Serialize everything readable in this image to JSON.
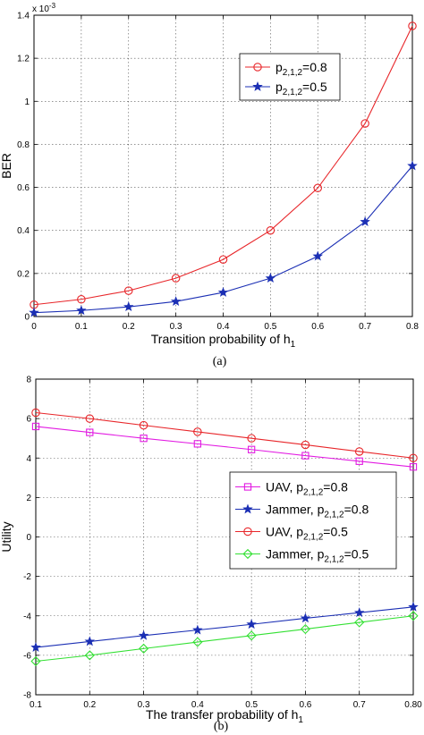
{
  "chart_data": [
    {
      "type": "line",
      "panel_label": "(a)",
      "title": "",
      "xlabel": "Transition probability of h",
      "xlabel_sub": "1",
      "ylabel": "BER",
      "y_multiplier_base": "x 10",
      "y_multiplier_exp": "-3",
      "xlim": [
        0,
        0.8
      ],
      "ylim": [
        0,
        1.4
      ],
      "xticks": [
        0,
        0.1,
        0.2,
        0.3,
        0.4,
        0.5,
        0.6,
        0.7,
        0.8
      ],
      "xtick_labels": [
        "0",
        "0.1",
        "0.2",
        "0.3",
        "0.4",
        "0.5",
        "0.6",
        "0.7",
        "0.8"
      ],
      "yticks": [
        0,
        0.2,
        0.4,
        0.6,
        0.8,
        1,
        1.2,
        1.4
      ],
      "ytick_labels": [
        "0",
        "0.2",
        "0.4",
        "0.6",
        "0.8",
        "1",
        "1.2",
        "1.4"
      ],
      "grid": true,
      "legend_position": "upper-right",
      "x": [
        0,
        0.1,
        0.2,
        0.3,
        0.4,
        0.5,
        0.6,
        0.7,
        0.8
      ],
      "series": [
        {
          "name_prefix": "p",
          "name_sub": "2,1,2",
          "name_suffix": "=0.8",
          "color": "#e8262a",
          "marker": "circle",
          "values": [
            0.055,
            0.08,
            0.12,
            0.178,
            0.265,
            0.4,
            0.597,
            0.897,
            1.35
          ]
        },
        {
          "name_prefix": "p",
          "name_sub": "2,1,2",
          "name_suffix": "=0.5",
          "color": "#1b2fb4",
          "marker": "star",
          "values": [
            0.018,
            0.028,
            0.045,
            0.07,
            0.112,
            0.178,
            0.28,
            0.44,
            0.7
          ]
        }
      ]
    },
    {
      "type": "line",
      "panel_label": "(b)",
      "title": "",
      "xlabel": "The transfer probability of h",
      "xlabel_sub": "1",
      "ylabel": "Utility",
      "xlim": [
        0.1,
        0.8
      ],
      "ylim": [
        -8,
        8
      ],
      "xticks": [
        0.1,
        0.2,
        0.3,
        0.4,
        0.5,
        0.6,
        0.7,
        0.8
      ],
      "xtick_labels": [
        "0.1",
        "0.2",
        "0.3",
        "0.4",
        "0.5",
        "0.6",
        "0.7",
        "0.80"
      ],
      "yticks": [
        -8,
        -6,
        -4,
        -2,
        0,
        2,
        4,
        6,
        8
      ],
      "ytick_labels": [
        "-8",
        "-6",
        "-4",
        "-2",
        "0",
        "2",
        "4",
        "6",
        "8"
      ],
      "grid": true,
      "legend_position": "right-middle",
      "x": [
        0.1,
        0.2,
        0.3,
        0.4,
        0.5,
        0.6,
        0.7,
        0.8
      ],
      "series": [
        {
          "name_prefix": "UAV, p",
          "name_sub": "2,1,2",
          "name_suffix": "=0.8",
          "color": "#e21be2",
          "marker": "square",
          "values": [
            5.6,
            5.3,
            5.0,
            4.72,
            4.43,
            4.12,
            3.84,
            3.55
          ]
        },
        {
          "name_prefix": "Jammer, p",
          "name_sub": "2,1,2",
          "name_suffix": "=0.8",
          "color": "#1b2fb4",
          "marker": "star",
          "values": [
            -5.6,
            -5.3,
            -5.0,
            -4.72,
            -4.43,
            -4.12,
            -3.84,
            -3.55
          ]
        },
        {
          "name_prefix": "UAV, p",
          "name_sub": "2,1,2",
          "name_suffix": "=0.5",
          "color": "#e8262a",
          "marker": "circle",
          "values": [
            6.3,
            6.0,
            5.66,
            5.33,
            5.0,
            4.67,
            4.33,
            4.0
          ]
        },
        {
          "name_prefix": "Jammer, p",
          "name_sub": "2,1,2",
          "name_suffix": "=0.5",
          "color": "#33e033",
          "marker": "diamond",
          "values": [
            -6.3,
            -6.0,
            -5.66,
            -5.33,
            -5.0,
            -4.67,
            -4.33,
            -4.0
          ]
        }
      ]
    }
  ]
}
